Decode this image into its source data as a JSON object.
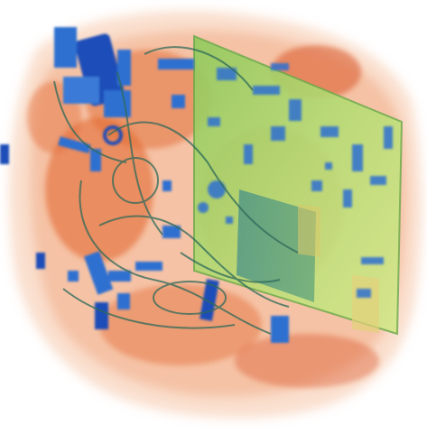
{
  "image": {
    "subject": "x-ray-baggage-scan",
    "colors": {
      "background": "#ffffff",
      "organic_light": "#f2a57a",
      "organic": "#e2622a",
      "organic_dark": "#c9471b",
      "inorganic": "#a8d66a",
      "inorganic_light": "#c9e48a",
      "metal": "#2f6fd0",
      "metal_dark": "#1f4db8",
      "teal": "#3e8c8a"
    }
  }
}
